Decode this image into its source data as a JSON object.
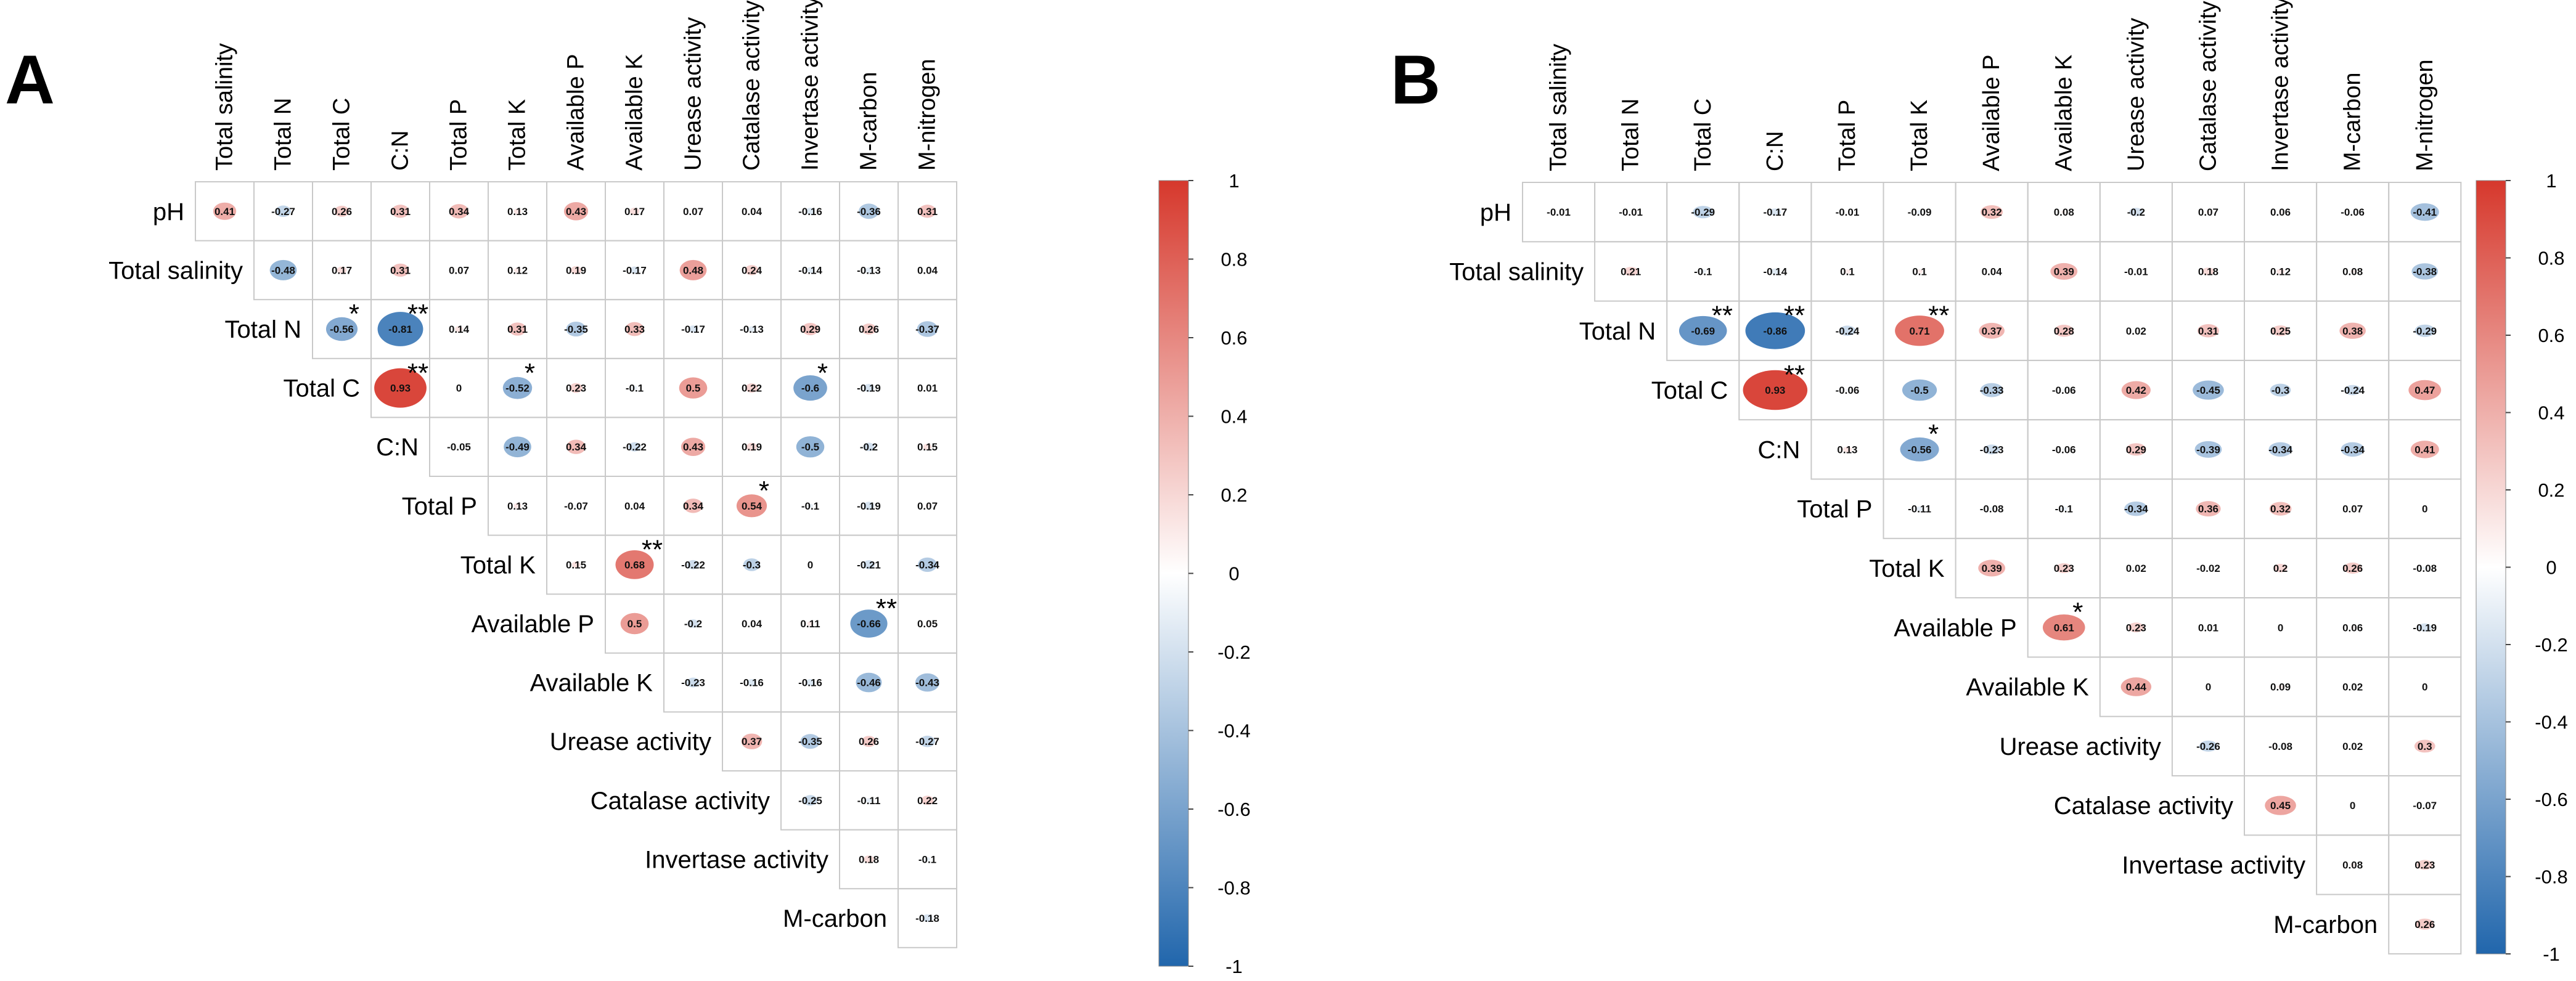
{
  "chart_data": [
    {
      "type": "heatmap",
      "panel": "A",
      "variables": [
        "pH",
        "Total salinity",
        "Total N",
        "Total C",
        "C:N",
        "Total P",
        "Total K",
        "Available P",
        "Available K",
        "Urease activity",
        "Catalase activity",
        "Invertase activity",
        "M-carbon",
        "M-nitrogen"
      ],
      "row_labels": [
        "pH",
        "Total salinity",
        "Total N",
        "Total C",
        "C:N",
        "Total P",
        "Total K",
        "Available P",
        "Available K",
        "Urease activity",
        "Catalase activity",
        "Invertase activity",
        "M-carbon"
      ],
      "col_labels": [
        "Total salinity",
        "Total N",
        "Total C",
        "C:N",
        "Total P",
        "Total K",
        "Available P",
        "Available K",
        "Urease activity",
        "Catalase activity",
        "Invertase activity",
        "M-carbon",
        "M-nitrogen"
      ],
      "values": [
        [
          0.41,
          -0.27,
          0.26,
          0.31,
          0.34,
          0.13,
          0.43,
          0.17,
          0.07,
          0.04,
          -0.16,
          -0.36,
          0.31
        ],
        [
          -0.48,
          0.17,
          0.31,
          0.07,
          0.12,
          0.19,
          -0.17,
          0.48,
          0.24,
          -0.14,
          -0.13,
          0.04
        ],
        [
          -0.56,
          -0.81,
          0.14,
          0.31,
          -0.35,
          0.33,
          -0.17,
          -0.13,
          0.29,
          0.26,
          -0.37
        ],
        [
          0.93,
          0,
          -0.52,
          0.23,
          -0.1,
          0.5,
          0.22,
          -0.6,
          -0.19,
          0.01
        ],
        [
          -0.05,
          -0.49,
          0.34,
          -0.22,
          0.43,
          0.19,
          -0.5,
          -0.2,
          0.15
        ],
        [
          0.13,
          -0.07,
          0.04,
          0.34,
          0.54,
          -0.1,
          -0.19,
          0.07
        ],
        [
          0.15,
          0.68,
          -0.22,
          -0.3,
          0,
          -0.21,
          -0.34
        ],
        [
          0.5,
          -0.2,
          0.04,
          0.11,
          -0.66,
          0.05
        ],
        [
          -0.23,
          -0.16,
          -0.16,
          -0.46,
          -0.43
        ],
        [
          0.37,
          -0.35,
          0.26,
          -0.27
        ],
        [
          -0.25,
          -0.11,
          0.22
        ],
        [
          0.18,
          -0.1
        ],
        [
          -0.18
        ]
      ],
      "significance": [
        {
          "row": 2,
          "col": 2,
          "mark": "*"
        },
        {
          "row": 2,
          "col": 3,
          "mark": "**"
        },
        {
          "row": 3,
          "col": 3,
          "mark": "**"
        },
        {
          "row": 3,
          "col": 5,
          "mark": "*"
        },
        {
          "row": 3,
          "col": 10,
          "mark": "*"
        },
        {
          "row": 5,
          "col": 9,
          "mark": "*"
        },
        {
          "row": 6,
          "col": 7,
          "mark": "**"
        },
        {
          "row": 7,
          "col": 11,
          "mark": "**"
        }
      ],
      "colorbar": {
        "min": -1,
        "max": 1,
        "ticks": [
          "1",
          "0.8",
          "0.6",
          "0.4",
          "0.2",
          "0",
          "-0.2",
          "-0.4",
          "-0.6",
          "-0.8",
          "-1"
        ]
      }
    },
    {
      "type": "heatmap",
      "panel": "B",
      "variables": [
        "pH",
        "Total salinity",
        "Total N",
        "Total C",
        "C:N",
        "Total P",
        "Total K",
        "Available P",
        "Available K",
        "Urease activity",
        "Catalase activity",
        "Invertase activity",
        "M-carbon",
        "M-nitrogen"
      ],
      "row_labels": [
        "pH",
        "Total salinity",
        "Total N",
        "Total C",
        "C:N",
        "Total P",
        "Total K",
        "Available P",
        "Available K",
        "Urease activity",
        "Catalase activity",
        "Invertase activity",
        "M-carbon"
      ],
      "col_labels": [
        "Total salinity",
        "Total N",
        "Total C",
        "C:N",
        "Total P",
        "Total K",
        "Available P",
        "Available K",
        "Urease activity",
        "Catalase activity",
        "Invertase activity",
        "M-carbon",
        "M-nitrogen"
      ],
      "values": [
        [
          -0.01,
          -0.01,
          -0.29,
          -0.17,
          -0.01,
          -0.09,
          0.32,
          0.08,
          -0.2,
          0.07,
          0.06,
          -0.06,
          -0.41
        ],
        [
          0.21,
          -0.1,
          -0.14,
          0.1,
          0.1,
          0.04,
          0.39,
          -0.01,
          0.18,
          0.12,
          0.08,
          -0.38
        ],
        [
          -0.69,
          -0.86,
          -0.24,
          0.71,
          0.37,
          0.28,
          0.02,
          0.31,
          0.25,
          0.38,
          -0.29
        ],
        [
          0.93,
          -0.06,
          -0.5,
          -0.33,
          -0.06,
          0.42,
          -0.45,
          -0.3,
          -0.24,
          0.47
        ],
        [
          0.13,
          -0.56,
          -0.23,
          -0.06,
          0.29,
          -0.39,
          -0.34,
          -0.34,
          0.41
        ],
        [
          -0.11,
          -0.08,
          -0.1,
          -0.34,
          0.36,
          0.32,
          0.07,
          0
        ],
        [
          0.39,
          0.23,
          0.02,
          -0.02,
          0.2,
          0.26,
          -0.08
        ],
        [
          0.61,
          0.23,
          0.01,
          0,
          0.06,
          -0.19
        ],
        [
          0.44,
          0,
          0.09,
          0.02,
          0
        ],
        [
          -0.26,
          -0.08,
          0.02,
          0.3
        ],
        [
          0.45,
          0,
          -0.07
        ],
        [
          0.08,
          0.23
        ],
        [
          0.26
        ]
      ],
      "significance": [
        {
          "row": 2,
          "col": 2,
          "mark": "**"
        },
        {
          "row": 2,
          "col": 3,
          "mark": "**"
        },
        {
          "row": 2,
          "col": 5,
          "mark": "**"
        },
        {
          "row": 3,
          "col": 3,
          "mark": "**"
        },
        {
          "row": 4,
          "col": 5,
          "mark": "*"
        },
        {
          "row": 7,
          "col": 7,
          "mark": "*"
        }
      ],
      "colorbar": {
        "min": -1,
        "max": 1,
        "ticks": [
          "1",
          "0.8",
          "0.6",
          "0.4",
          "0.2",
          "0",
          "-0.2",
          "-0.4",
          "-0.6",
          "-0.8",
          "-1"
        ]
      }
    }
  ],
  "colors": {
    "negative": "#2166ac",
    "neutral": "#ffffff",
    "positive": "#d6382c",
    "grid": "#c9c9c9"
  }
}
